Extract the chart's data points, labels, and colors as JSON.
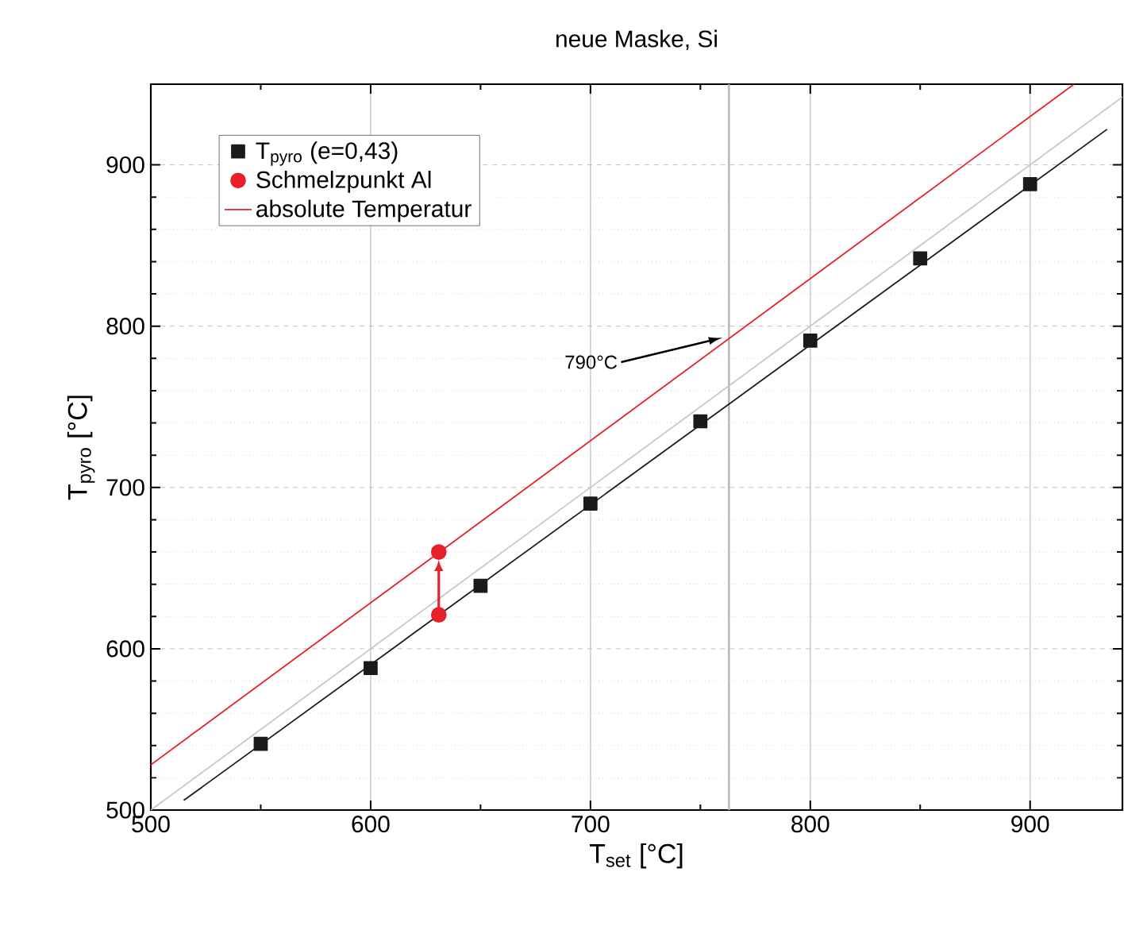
{
  "chart_data": {
    "type": "scatter",
    "title": "neue Maske, Si",
    "xlabel": "T$_{set}$ [°C]",
    "ylabel": "T$_{pyro}$ [°C]",
    "xlim": [
      500,
      942
    ],
    "ylim": [
      500,
      950
    ],
    "xticks": [
      500,
      600,
      700,
      800,
      900
    ],
    "yticks": [
      500,
      600,
      700,
      800,
      900
    ],
    "grid": true,
    "legend": "top left",
    "series": [
      {
        "type": "line",
        "marker": "none",
        "line_style": "solid",
        "color": "#c8c8c8",
        "x": [
          500,
          942
        ],
        "values": [
          500,
          942
        ]
      },
      {
        "type": "line",
        "marker": "none",
        "line_style": "solid",
        "color": "#1a1a1a",
        "x": [
          515,
          935
        ],
        "values": [
          506,
          922
        ]
      },
      {
        "name": "T$_{pyro}$ (e=0,43)",
        "marker": "square",
        "color": "#1a1a1a",
        "x": [
          550,
          600,
          650,
          700,
          750,
          800,
          850,
          900
        ],
        "values": [
          541,
          588,
          639,
          690,
          741,
          791,
          842,
          888
        ]
      },
      {
        "name": "Schmelzpunkt Al",
        "marker": "circle",
        "color": "#e8202a",
        "x": [
          631,
          631
        ],
        "values": [
          621,
          660
        ]
      },
      {
        "name": "absolute Temperatur",
        "type": "line",
        "marker": "none",
        "line_style": "solid",
        "color": "#e8202a",
        "x": [
          500,
          920
        ],
        "values": [
          528,
          950
        ]
      }
    ],
    "ref_lines": [
      {
        "axis": "x",
        "value": 763,
        "color": "#b4b4b4"
      }
    ],
    "annotations": [
      "790°C"
    ]
  }
}
